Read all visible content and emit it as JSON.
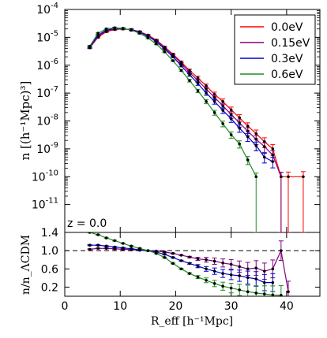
{
  "chart_data": [
    {
      "type": "line",
      "panel": "top",
      "ylabel": "n [(h⁻¹Mpc)³]",
      "yscale": "log",
      "ylim": [
        1e-12,
        0.0001
      ],
      "xlim": [
        0,
        46
      ],
      "annotation": "z = 0.0",
      "legend_position": "top-right",
      "yticks": [
        {
          "base": "10",
          "exp": "-4"
        },
        {
          "base": "10",
          "exp": "-5"
        },
        {
          "base": "10",
          "exp": "-6"
        },
        {
          "base": "10",
          "exp": "-7"
        },
        {
          "base": "10",
          "exp": "-8"
        },
        {
          "base": "10",
          "exp": "-9"
        },
        {
          "base": "10",
          "exp": "-10"
        },
        {
          "base": "10",
          "exp": "-11"
        }
      ],
      "series": [
        {
          "name": "0.0eV",
          "color": "#ff0000",
          "x": [
            4.5,
            6,
            7.5,
            9,
            10.5,
            12,
            13.5,
            15,
            16.5,
            18,
            19.5,
            21,
            22.5,
            24,
            25.5,
            27,
            28.5,
            30,
            31.5,
            33,
            34.5,
            36,
            37.5,
            39,
            40.3,
            43
          ],
          "y": [
            4.2e-06,
            1e-05,
            1.6e-05,
            1.9e-05,
            2e-05,
            1.9e-05,
            1.6e-05,
            1.2e-05,
            8e-06,
            4.5e-06,
            2.5e-06,
            1.3e-06,
            6.5e-07,
            3.5e-07,
            1.8e-07,
            9e-08,
            5e-08,
            2.5e-08,
            1.3e-08,
            6.5e-09,
            3.5e-09,
            1.8e-09,
            1e-09,
            1e-10,
            1e-10,
            1e-10
          ]
        },
        {
          "name": "0.15eV",
          "color": "#800080",
          "x": [
            4.5,
            6,
            7.5,
            9,
            10.5,
            12,
            13.5,
            15,
            16.5,
            18,
            19.5,
            21,
            22.5,
            24,
            25.5,
            27,
            28.5,
            30,
            31.5,
            33,
            34.5,
            36,
            37.5,
            39
          ],
          "y": [
            4.3e-06,
            1.1e-05,
            1.7e-05,
            2e-05,
            2e-05,
            1.9e-05,
            1.55e-05,
            1.15e-05,
            7.5e-06,
            4.2e-06,
            2.3e-06,
            1.15e-06,
            5.5e-07,
            2.8e-07,
            1.4e-07,
            7e-08,
            3.5e-08,
            1.7e-08,
            8.5e-09,
            4.3e-09,
            2.2e-09,
            1.2e-09,
            6e-10,
            1e-10
          ]
        },
        {
          "name": "0.3eV",
          "color": "#0000cd",
          "x": [
            4.5,
            6,
            7.5,
            9,
            10.5,
            12,
            13.5,
            15,
            16.5,
            18,
            19.5,
            21,
            22.5,
            24,
            25.5,
            27,
            28.5,
            30,
            31.5,
            33,
            34.5,
            36,
            37.5
          ],
          "y": [
            4.4e-06,
            1.2e-05,
            1.8e-05,
            2.1e-05,
            2.05e-05,
            1.85e-05,
            1.5e-05,
            1.1e-05,
            7e-06,
            3.8e-06,
            2e-06,
            9.5e-07,
            4.5e-07,
            2.2e-07,
            1e-07,
            5e-08,
            2.4e-08,
            1.2e-08,
            5.5e-09,
            2.7e-09,
            1.3e-09,
            5e-10,
            3.5e-10
          ]
        },
        {
          "name": "0.6eV",
          "color": "#228b22",
          "x": [
            4.5,
            6,
            7.5,
            9,
            10.5,
            12,
            13.5,
            15,
            16.5,
            18,
            19.5,
            21,
            22.5,
            24,
            25.5,
            27,
            28.5,
            30,
            31.5,
            33,
            34.5
          ],
          "y": [
            4.8e-06,
            1.4e-05,
            2e-05,
            2.2e-05,
            2.1e-05,
            1.8e-05,
            1.4e-05,
            9.5e-06,
            5.8e-06,
            3e-06,
            1.45e-06,
            6.5e-07,
            2.8e-07,
            1.2e-07,
            5e-08,
            2e-08,
            8e-09,
            3.2e-09,
            1.5e-09,
            4e-10,
            1e-10
          ]
        }
      ]
    },
    {
      "type": "line",
      "panel": "bottom",
      "xlabel": "R_eff [h⁻¹Mpc]",
      "ylabel": "n/n_ΛCDM",
      "ylim": [
        0.0,
        1.4
      ],
      "xlim": [
        0,
        46
      ],
      "reference_line": 1.0,
      "yticks": [
        "1.4",
        "1.0",
        "0.6",
        "0.2"
      ],
      "xticks": [
        "0",
        "10",
        "20",
        "30",
        "40"
      ],
      "series": [
        {
          "name": "0.15eV",
          "color": "#800080",
          "x": [
            4.5,
            6,
            7.5,
            9,
            10.5,
            12,
            13.5,
            15,
            16.5,
            18,
            19.5,
            21,
            22.5,
            24,
            25.5,
            27,
            28.5,
            30,
            31.5,
            33,
            34.5,
            36,
            37.5,
            39,
            40.3
          ],
          "y": [
            1.03,
            1.05,
            1.05,
            1.04,
            1.03,
            1.02,
            1.01,
            1.0,
            0.99,
            0.97,
            0.94,
            0.9,
            0.86,
            0.82,
            0.8,
            0.77,
            0.73,
            0.7,
            0.65,
            0.6,
            0.62,
            0.55,
            0.6,
            1.0,
            0.1
          ]
        },
        {
          "name": "0.3eV",
          "color": "#0000cd",
          "x": [
            4.5,
            6,
            7.5,
            9,
            10.5,
            12,
            13.5,
            15,
            16.5,
            18,
            19.5,
            21,
            22.5,
            24,
            25.5,
            27,
            28.5,
            30,
            31.5,
            33,
            34.5,
            36,
            37.5
          ],
          "y": [
            1.12,
            1.12,
            1.1,
            1.08,
            1.06,
            1.04,
            1.02,
            1.0,
            0.97,
            0.92,
            0.85,
            0.78,
            0.72,
            0.66,
            0.6,
            0.55,
            0.5,
            0.47,
            0.45,
            0.41,
            0.38,
            0.3,
            0.3
          ]
        },
        {
          "name": "0.6eV",
          "color": "#228b22",
          "x": [
            4.5,
            6,
            7.5,
            9,
            10.5,
            12,
            13.5,
            15,
            16.5,
            18,
            19.5,
            21,
            22.5,
            24,
            25.5,
            27,
            28.5,
            30,
            31.5,
            33,
            34.5,
            36,
            37.5,
            39
          ],
          "y": [
            1.4,
            1.35,
            1.28,
            1.22,
            1.16,
            1.1,
            1.05,
            1.0,
            0.94,
            0.85,
            0.72,
            0.6,
            0.5,
            0.42,
            0.35,
            0.28,
            0.22,
            0.18,
            0.14,
            0.1,
            0.07,
            0.05,
            0.03,
            0.02
          ]
        }
      ]
    }
  ]
}
